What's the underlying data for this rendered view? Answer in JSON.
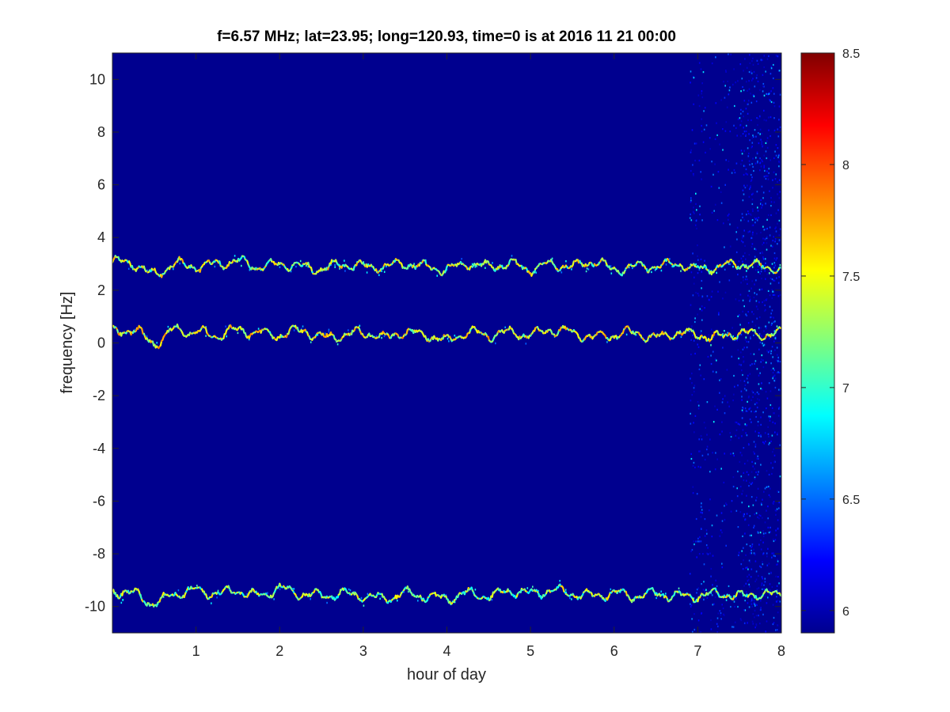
{
  "chart_data": {
    "type": "heatmap",
    "title": "f=6.57 MHz;  lat=23.95; long=120.93, time=0 is at 2016 11 21 00:00",
    "xlabel": "hour of day",
    "ylabel": "frequency [Hz]",
    "xlim": [
      0,
      8
    ],
    "ylim": [
      -11,
      11
    ],
    "xticks": [
      1,
      2,
      3,
      4,
      5,
      6,
      7,
      8
    ],
    "yticks": [
      -10,
      -8,
      -6,
      -4,
      -2,
      0,
      2,
      4,
      6,
      8,
      10
    ],
    "colorbar": {
      "range": [
        5.9,
        8.5
      ],
      "ticks": [
        6,
        6.5,
        7,
        7.5,
        8,
        8.5
      ],
      "colormap": "jet",
      "background_value": 5.9
    },
    "background_color": "#00008f",
    "series": [
      {
        "hour": [
          0,
          0.25,
          0.5,
          0.75,
          1,
          1.25,
          1.5,
          1.75,
          2,
          2.25,
          2.5,
          2.75,
          3,
          3.25,
          3.5,
          3.75,
          4,
          4.25,
          4.5,
          4.75,
          5,
          5.25,
          5.5,
          5.75,
          6,
          6.25,
          6.5,
          6.75,
          7,
          7.25,
          7.5,
          7.75,
          8
        ],
        "frequency": [
          3.1,
          3.0,
          2.6,
          3.0,
          2.9,
          3.0,
          3.1,
          2.9,
          3.0,
          2.9,
          2.8,
          3.0,
          2.9,
          2.9,
          3.0,
          2.9,
          2.8,
          3.0,
          2.9,
          3.0,
          2.8,
          3.0,
          2.9,
          3.1,
          2.8,
          2.9,
          2.9,
          3.0,
          2.8,
          2.9,
          3.0,
          2.9,
          2.8
        ],
        "intensity": 7.2
      },
      {
        "hour": [
          0,
          0.25,
          0.5,
          0.75,
          1,
          1.25,
          1.5,
          1.75,
          2,
          2.25,
          2.5,
          2.75,
          3,
          3.25,
          3.5,
          3.75,
          4,
          4.25,
          4.5,
          4.75,
          5,
          5.25,
          5.5,
          5.75,
          6,
          6.25,
          6.5,
          6.75,
          7,
          7.25,
          7.5,
          7.75,
          8
        ],
        "frequency": [
          0.4,
          0.5,
          0.0,
          0.5,
          0.4,
          0.3,
          0.5,
          0.4,
          0.3,
          0.5,
          0.2,
          0.3,
          0.4,
          0.2,
          0.4,
          0.3,
          0.1,
          0.4,
          0.3,
          0.4,
          0.3,
          0.5,
          0.4,
          0.2,
          0.3,
          0.4,
          0.2,
          0.4,
          0.3,
          0.2,
          0.4,
          0.3,
          0.4
        ],
        "intensity": 7.3
      },
      {
        "hour": [
          0,
          0.25,
          0.5,
          0.75,
          1,
          1.25,
          1.5,
          1.75,
          2,
          2.25,
          2.5,
          2.75,
          3,
          3.25,
          3.5,
          3.75,
          4,
          4.25,
          4.5,
          4.75,
          5,
          5.25,
          5.5,
          5.75,
          6,
          6.25,
          6.5,
          6.75,
          7,
          7.25,
          7.5,
          7.75,
          8
        ],
        "frequency": [
          -9.4,
          -9.5,
          -9.9,
          -9.5,
          -9.4,
          -9.5,
          -9.4,
          -9.6,
          -9.3,
          -9.5,
          -9.6,
          -9.5,
          -9.6,
          -9.7,
          -9.5,
          -9.6,
          -9.7,
          -9.5,
          -9.6,
          -9.4,
          -9.5,
          -9.4,
          -9.5,
          -9.6,
          -9.5,
          -9.6,
          -9.5,
          -9.6,
          -9.6,
          -9.5,
          -9.6,
          -9.5,
          -9.6
        ],
        "intensity": 7.1
      }
    ]
  }
}
